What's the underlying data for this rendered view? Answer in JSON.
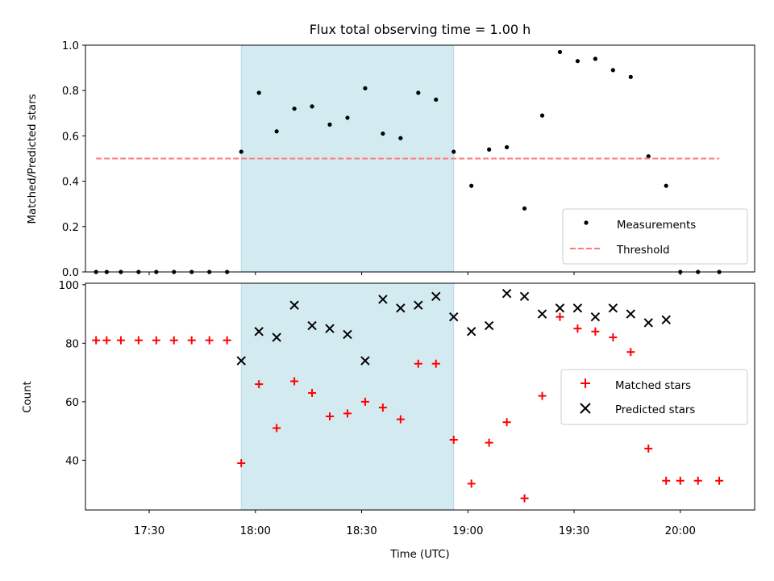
{
  "chart_data": [
    {
      "type": "scatter",
      "title": "Flux total observing time = 1.00 h",
      "xlabel": "",
      "ylabel": "Matched/Predicted stars",
      "xlim": [
        "17:12",
        "20:21"
      ],
      "ylim": [
        0,
        1.0
      ],
      "yticks": [
        "0.0",
        "0.2",
        "0.4",
        "0.6",
        "0.8",
        "1.0"
      ],
      "xticks": [
        "17:30",
        "18:00",
        "18:30",
        "19:00",
        "19:30",
        "20:00"
      ],
      "shaded_interval": [
        "17:56",
        "18:56"
      ],
      "series": [
        {
          "name": "Measurements",
          "marker": "dot",
          "color": "#000000",
          "points": [
            [
              "17:15",
              0.0
            ],
            [
              "17:18",
              0.0
            ],
            [
              "17:22",
              0.0
            ],
            [
              "17:27",
              0.0
            ],
            [
              "17:32",
              0.0
            ],
            [
              "17:37",
              0.0
            ],
            [
              "17:42",
              0.0
            ],
            [
              "17:47",
              0.0
            ],
            [
              "17:52",
              0.0
            ],
            [
              "17:56",
              0.53
            ],
            [
              "18:01",
              0.79
            ],
            [
              "18:06",
              0.62
            ],
            [
              "18:11",
              0.72
            ],
            [
              "18:16",
              0.73
            ],
            [
              "18:21",
              0.65
            ],
            [
              "18:26",
              0.68
            ],
            [
              "18:31",
              0.81
            ],
            [
              "18:36",
              0.61
            ],
            [
              "18:41",
              0.59
            ],
            [
              "18:46",
              0.79
            ],
            [
              "18:51",
              0.76
            ],
            [
              "18:56",
              0.53
            ],
            [
              "19:01",
              0.38
            ],
            [
              "19:06",
              0.54
            ],
            [
              "19:11",
              0.55
            ],
            [
              "19:16",
              0.28
            ],
            [
              "19:21",
              0.69
            ],
            [
              "19:26",
              0.97
            ],
            [
              "19:31",
              0.93
            ],
            [
              "19:36",
              0.94
            ],
            [
              "19:41",
              0.89
            ],
            [
              "19:46",
              0.86
            ],
            [
              "19:51",
              0.51
            ],
            [
              "19:56",
              0.38
            ],
            [
              "20:00",
              0.0
            ],
            [
              "20:05",
              0.0
            ],
            [
              "20:11",
              0.0
            ]
          ]
        },
        {
          "name": "Threshold",
          "line": "dashed",
          "color": "#ff7b7b",
          "points": [
            [
              "17:15",
              0.5
            ],
            [
              "20:11",
              0.5
            ]
          ]
        }
      ],
      "legend_position": "lower right"
    },
    {
      "type": "scatter",
      "xlabel": "Time (UTC)",
      "ylabel": "Count",
      "xlim": [
        "17:12",
        "20:21"
      ],
      "ylim": [
        23,
        100.5
      ],
      "yticks": [
        "40",
        "60",
        "80",
        "100"
      ],
      "xticks": [
        "17:30",
        "18:00",
        "18:30",
        "19:00",
        "19:30",
        "20:00"
      ],
      "shaded_interval": [
        "17:56",
        "18:56"
      ],
      "series": [
        {
          "name": "Matched stars",
          "marker": "plus",
          "color": "#ff0000",
          "points": [
            [
              "17:15",
              81
            ],
            [
              "17:18",
              81
            ],
            [
              "17:22",
              81
            ],
            [
              "17:27",
              81
            ],
            [
              "17:32",
              81
            ],
            [
              "17:37",
              81
            ],
            [
              "17:42",
              81
            ],
            [
              "17:47",
              81
            ],
            [
              "17:52",
              81
            ],
            [
              "17:56",
              39
            ],
            [
              "18:01",
              66
            ],
            [
              "18:06",
              51
            ],
            [
              "18:11",
              67
            ],
            [
              "18:16",
              63
            ],
            [
              "18:21",
              55
            ],
            [
              "18:26",
              56
            ],
            [
              "18:31",
              60
            ],
            [
              "18:36",
              58
            ],
            [
              "18:41",
              54
            ],
            [
              "18:46",
              73
            ],
            [
              "18:51",
              73
            ],
            [
              "18:56",
              47
            ],
            [
              "19:01",
              32
            ],
            [
              "19:06",
              46
            ],
            [
              "19:11",
              53
            ],
            [
              "19:16",
              27
            ],
            [
              "19:21",
              62
            ],
            [
              "19:26",
              89
            ],
            [
              "19:31",
              85
            ],
            [
              "19:36",
              84
            ],
            [
              "19:41",
              82
            ],
            [
              "19:46",
              77
            ],
            [
              "19:51",
              44
            ],
            [
              "19:56",
              33
            ],
            [
              "20:00",
              33
            ],
            [
              "20:05",
              33
            ],
            [
              "20:11",
              33
            ]
          ]
        },
        {
          "name": "Predicted stars",
          "marker": "x",
          "color": "#000000",
          "points": [
            [
              "17:56",
              74
            ],
            [
              "18:01",
              84
            ],
            [
              "18:06",
              82
            ],
            [
              "18:11",
              93
            ],
            [
              "18:16",
              86
            ],
            [
              "18:21",
              85
            ],
            [
              "18:26",
              83
            ],
            [
              "18:31",
              74
            ],
            [
              "18:36",
              95
            ],
            [
              "18:41",
              92
            ],
            [
              "18:46",
              93
            ],
            [
              "18:51",
              96
            ],
            [
              "18:56",
              89
            ],
            [
              "19:01",
              84
            ],
            [
              "19:06",
              86
            ],
            [
              "19:11",
              97
            ],
            [
              "19:16",
              96
            ],
            [
              "19:21",
              90
            ],
            [
              "19:26",
              92
            ],
            [
              "19:31",
              92
            ],
            [
              "19:36",
              89
            ],
            [
              "19:41",
              92
            ],
            [
              "19:46",
              90
            ],
            [
              "19:51",
              87
            ],
            [
              "19:56",
              88
            ]
          ]
        }
      ],
      "legend_position": "center right"
    }
  ],
  "colors": {
    "shade": "#d3ebf0",
    "shade_edge": "#b9dce6"
  }
}
